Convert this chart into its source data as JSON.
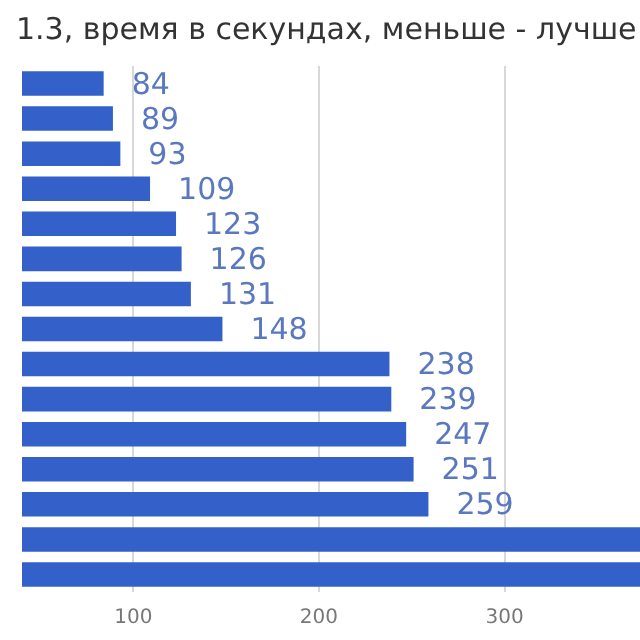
{
  "chart_data": {
    "type": "bar",
    "orientation": "horizontal",
    "title": "1.3, время в секундах, меньше - лучше",
    "categories": [
      null,
      null,
      null,
      null,
      null,
      null,
      null,
      null,
      null,
      null,
      null,
      null,
      null,
      null,
      null
    ],
    "values": [
      84,
      89,
      93,
      109,
      123,
      126,
      131,
      148,
      238,
      239,
      247,
      251,
      259,
      373,
      373
    ],
    "value_labels": [
      "84",
      "89",
      "93",
      "109",
      "123",
      "126",
      "131",
      "148",
      "238",
      "239",
      "247",
      "251",
      "259",
      null,
      null
    ],
    "color": "#3360c9",
    "xlim": [
      40,
      373
    ],
    "xticks": [
      100,
      200,
      300
    ],
    "grid": "x"
  }
}
